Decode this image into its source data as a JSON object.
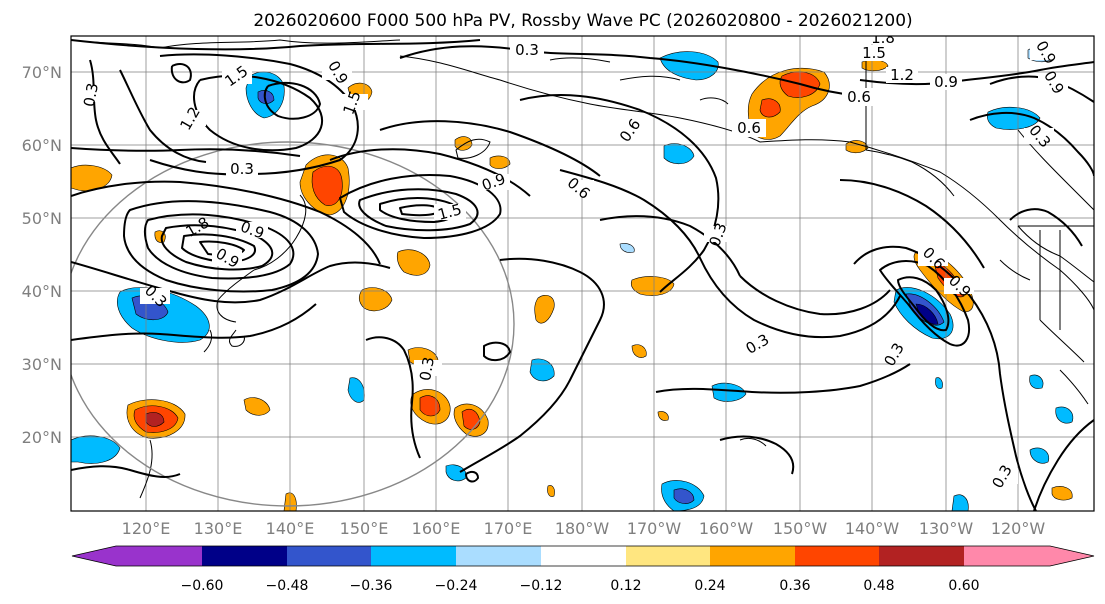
{
  "title": "2026020600 F000 500 hPa PV, Rossby Wave PC (2026020800 - 2026021200)",
  "latitude_labels": [
    "70°N",
    "60°N",
    "50°N",
    "40°N",
    "30°N",
    "20°N"
  ],
  "longitude_labels": [
    "120°E",
    "130°E",
    "140°E",
    "150°E",
    "160°E",
    "170°E",
    "180°W",
    "170°W",
    "160°W",
    "150°W",
    "140°W",
    "130°W",
    "120°W"
  ],
  "colorbar": {
    "colors": [
      "#9933cc",
      "#000088",
      "#3355cc",
      "#00bbff",
      "#aaddff",
      "#ffffff",
      "#ffe680",
      "#ffa500",
      "#ff4500",
      "#b22222",
      "#ff88aa"
    ],
    "tick_labels": [
      "−0.60",
      "−0.48",
      "−0.36",
      "−0.24",
      "−0.12",
      "0.12",
      "0.24",
      "0.36",
      "0.48",
      "0.60"
    ],
    "ticks": [
      -0.6,
      -0.48,
      -0.36,
      -0.24,
      -0.12,
      0.12,
      0.24,
      0.36,
      0.48,
      0.6
    ]
  },
  "contour_labels": [
    {
      "text": "0.3"
    },
    {
      "text": "1.8"
    },
    {
      "text": "1.5"
    },
    {
      "text": "1.2"
    },
    {
      "text": "0.9"
    },
    {
      "text": "0.6"
    },
    {
      "text": "0.6"
    },
    {
      "text": "1.5"
    },
    {
      "text": "1.2"
    },
    {
      "text": "1.5"
    },
    {
      "text": "0.9"
    },
    {
      "text": "0.3"
    },
    {
      "text": "0.3"
    },
    {
      "text": "0.9"
    },
    {
      "text": "0.9"
    },
    {
      "text": "0.6"
    },
    {
      "text": "1.5"
    },
    {
      "text": "0.9"
    },
    {
      "text": "0.3"
    },
    {
      "text": "0.6"
    },
    {
      "text": "0.3"
    },
    {
      "text": "0.3"
    },
    {
      "text": "0.3"
    },
    {
      "text": "0.3"
    },
    {
      "text": "0.6"
    },
    {
      "text": "0.9"
    },
    {
      "text": "0.3"
    },
    {
      "text": "0.3"
    },
    {
      "text": "0.9"
    },
    {
      "text": "1.8"
    },
    {
      "text": "0.9"
    }
  ]
}
